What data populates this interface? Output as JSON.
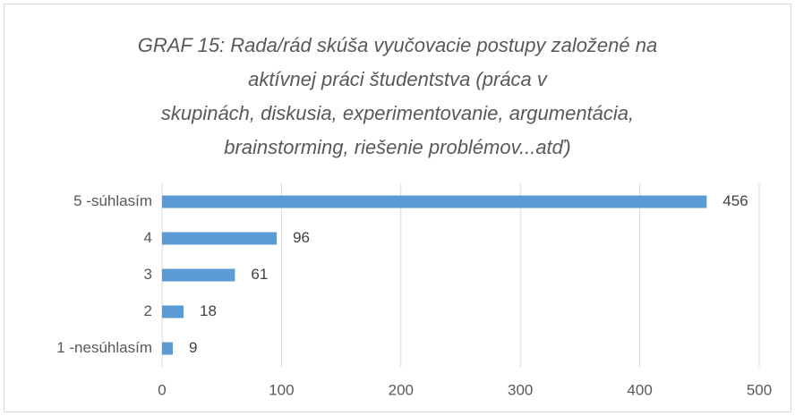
{
  "chart_data": {
    "type": "bar",
    "orientation": "horizontal",
    "title": [
      "GRAF 15: Rada/rád skúša vyučovacie postupy založené na",
      "aktívnej práci študentstva (práca v",
      "skupinách, diskusia, experimentovanie, argumentácia,",
      "brainstorming, riešenie problémov...atď)"
    ],
    "categories": [
      "5 -súhlasím",
      "4",
      "3",
      "2",
      "1 -nesúhlasím"
    ],
    "values": [
      456,
      96,
      61,
      18,
      9
    ],
    "color": "#5b9bd5",
    "xlim": [
      0,
      500
    ],
    "xticks": [
      0,
      100,
      200,
      300,
      400,
      500
    ],
    "grid": true
  }
}
